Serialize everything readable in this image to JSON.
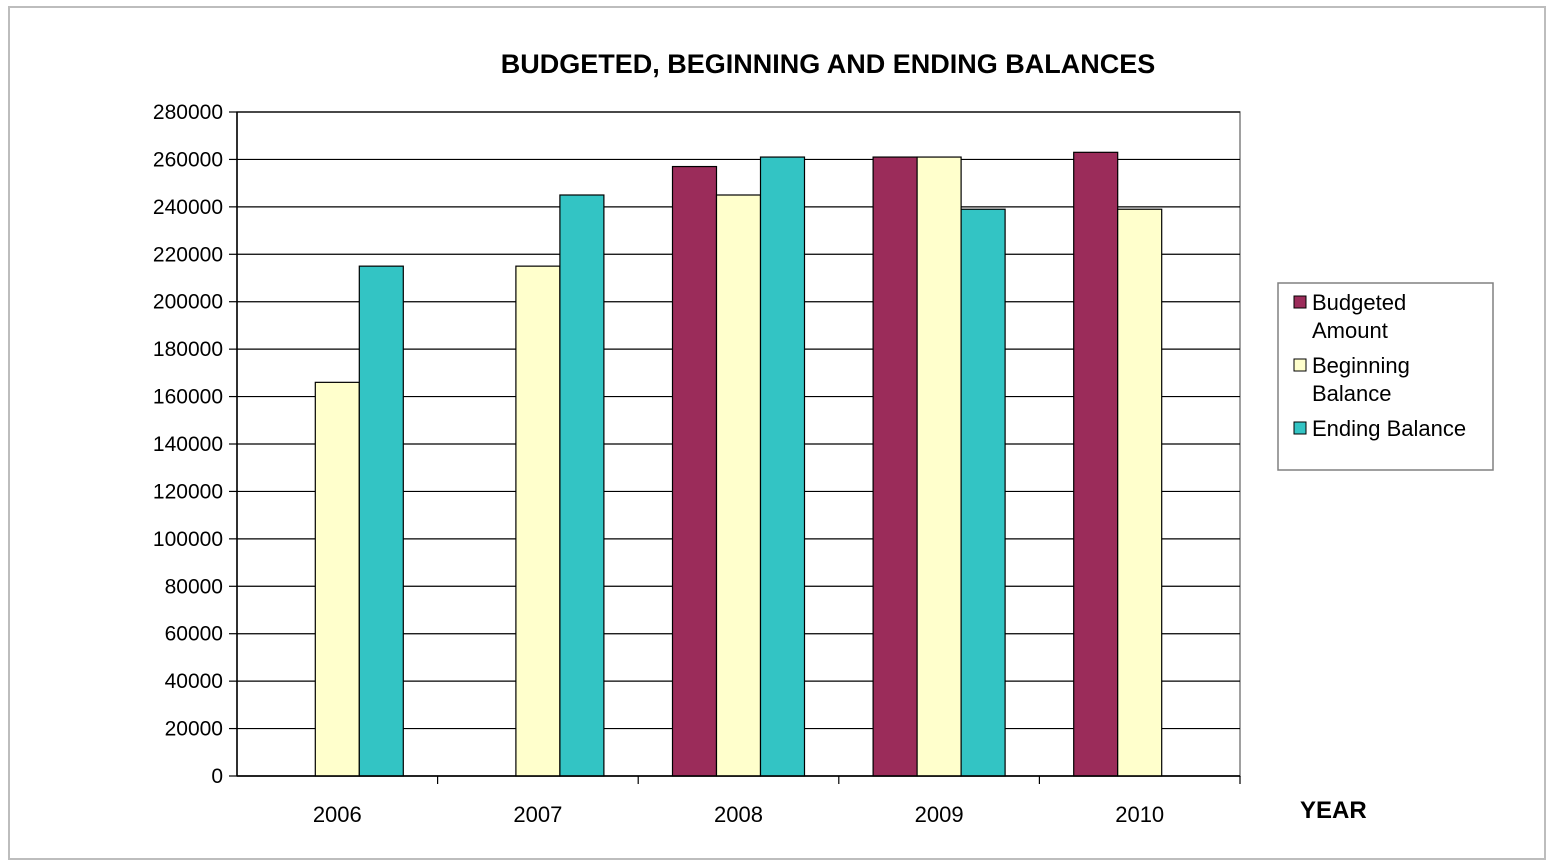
{
  "chart_data": {
    "type": "bar",
    "title": "BUDGETED, BEGINNING AND ENDING BALANCES",
    "xlabel": "YEAR",
    "ylabel": "",
    "ylim": [
      0,
      280000
    ],
    "ytick_step": 20000,
    "grid": true,
    "legend_position": "right",
    "categories": [
      "2006",
      "2007",
      "2008",
      "2009",
      "2010"
    ],
    "series": [
      {
        "name": "Budgeted Amount",
        "legend_lines": [
          "Budgeted",
          "Amount"
        ],
        "color": "#9b2c5a",
        "values": [
          0,
          0,
          257000,
          261000,
          263000
        ]
      },
      {
        "name": "Beginning Balance",
        "legend_lines": [
          "Beginning",
          "Balance"
        ],
        "color": "#ffffcc",
        "values": [
          166000,
          215000,
          245000,
          261000,
          239000
        ]
      },
      {
        "name": "Ending Balance",
        "legend_lines": [
          "Ending Balance"
        ],
        "color": "#33c4c4",
        "values": [
          215000,
          245000,
          261000,
          239000,
          0
        ]
      }
    ]
  }
}
